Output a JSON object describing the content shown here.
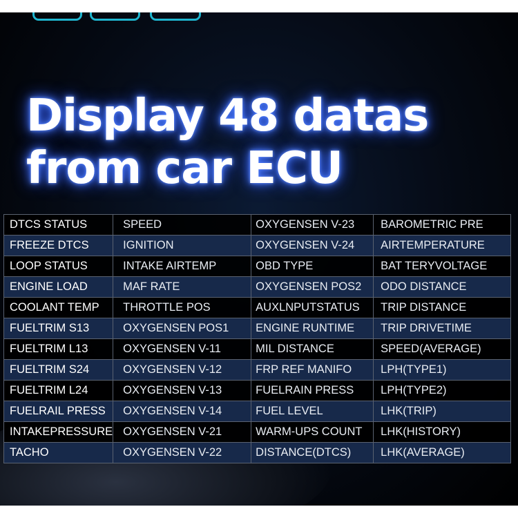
{
  "headline": {
    "line1": "Display 48 datas",
    "line2": "from car ECU"
  },
  "colors": {
    "accent": "#1fb6d0",
    "row_alt": "#17294a",
    "glow": "#2b55ff"
  },
  "table": {
    "rows": [
      [
        "DTCS  STATUS",
        "SPEED",
        "OXYGENSEN V-23",
        "BAROMETRIC PRE"
      ],
      [
        "FREEZE DTCS",
        "IGNITION",
        "OXYGENSEN V-24",
        "AIRTEMPERATURE"
      ],
      [
        "LOOP STATUS",
        "INTAKE AIRTEMP",
        "OBD TYPE",
        "BAT TERYVOLTAGE"
      ],
      [
        "ENGINE LOAD",
        "MAF RATE",
        "OXYGENSEN POS2",
        "ODO DISTANCE"
      ],
      [
        "COOLANT TEMP",
        "THROTTLE POS",
        "AUXLNPUTSTATUS",
        "TRIP DISTANCE"
      ],
      [
        "FUELTRIM S13",
        "OXYGENSEN POS1",
        "ENGINE RUNTIME",
        "TRIP DRIVETIME"
      ],
      [
        "FUELTRIM L13",
        "OXYGENSEN V-11",
        "MIL DISTANCE",
        "SPEED(AVERAGE)"
      ],
      [
        "FUELTRIM S24",
        "OXYGENSEN V-12",
        "FRP REF MANIFO",
        "LPH(TYPE1)"
      ],
      [
        "FUELTRIM L24",
        "OXYGENSEN V-13",
        "FUELRAIN PRESS",
        "LPH(TYPE2)"
      ],
      [
        "FUELRAIL PRESS",
        "OXYGENSEN V-14",
        "FUEL LEVEL",
        "LHK(TRIP)"
      ],
      [
        "INTAKEPRESSURE",
        "OXYGENSEN V-21",
        "WARM-UPS COUNT",
        "LHK(HISTORY)"
      ],
      [
        "TACHO",
        "OXYGENSEN V-22",
        "DISTANCE(DTCS)",
        "LHK(AVERAGE)"
      ]
    ]
  }
}
